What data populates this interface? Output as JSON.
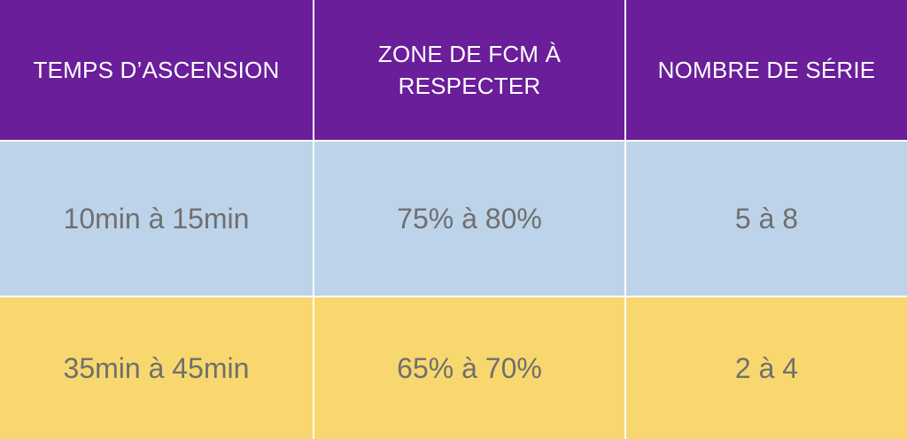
{
  "table": {
    "headers": [
      "TEMPS D’ASCENSION",
      "ZONE DE FCM À RESPECTER",
      "NOMBRE DE SÉRIE"
    ],
    "rows": [
      [
        "10min à 15min",
        "75% à 80%",
        "5 à 8"
      ],
      [
        "35min à 45min",
        "65% à 70%",
        "2 à 4"
      ]
    ]
  },
  "colors": {
    "header_bg": "#6a1e9a",
    "row1_bg": "#bdd3ea",
    "row2_bg": "#f8d86e",
    "body_text": "#6f6f6f",
    "header_text": "#ffffff"
  }
}
